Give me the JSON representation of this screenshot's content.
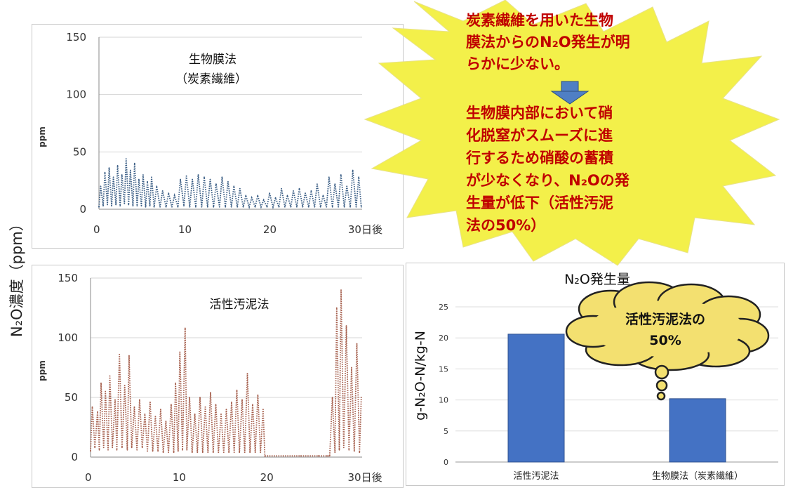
{
  "ylabel_main": "N₂O濃度（ppm）",
  "callout": {
    "lines_top": [
      "炭素繊維を用いた生物",
      "膜法からのN₂O発生が明",
      "らかに少ない。"
    ],
    "lines_bottom": [
      "生物膜内部において硝",
      "化脱窒がスムーズに進",
      "行するため硝酸の蓄積",
      "が少なくなり、N₂Oの発",
      "生量が低下（活性汚泥",
      "法の50%）"
    ],
    "colors": {
      "burst": "#f3f04a",
      "text": "#c00000",
      "arrow": "#4f7fc4"
    }
  },
  "cloud_label": [
    "活性汚泥法の",
    "50%"
  ],
  "colors": {
    "biofilm_series": "#3c5f86",
    "sludge_series": "#a6604e",
    "bar": "#4472c4"
  },
  "chart_data": [
    {
      "type": "line",
      "title": [
        "生物膜法",
        "（炭素繊維）"
      ],
      "ylabel": "ppm",
      "xlabel_suffix": "日後",
      "ylim": [
        0,
        150
      ],
      "yticks": [
        0,
        50,
        100,
        150
      ],
      "xlim": [
        0,
        31
      ],
      "xticks": [
        0,
        10,
        20,
        30
      ],
      "xtick_labels": [
        "0",
        "10",
        "20",
        "30日後"
      ],
      "series": [
        {
          "values": [
            [
              0.0,
              2
            ],
            [
              0.2,
              20
            ],
            [
              0.5,
              3
            ],
            [
              0.7,
              32
            ],
            [
              1.0,
              4
            ],
            [
              1.2,
              36
            ],
            [
              1.5,
              3
            ],
            [
              1.7,
              28
            ],
            [
              2.0,
              4
            ],
            [
              2.2,
              38
            ],
            [
              2.5,
              3
            ],
            [
              2.7,
              30
            ],
            [
              3.0,
              5
            ],
            [
              3.2,
              44
            ],
            [
              3.5,
              4
            ],
            [
              3.7,
              34
            ],
            [
              4.0,
              3
            ],
            [
              4.2,
              40
            ],
            [
              4.5,
              3
            ],
            [
              4.7,
              26
            ],
            [
              5.0,
              3
            ],
            [
              5.2,
              30
            ],
            [
              5.5,
              2
            ],
            [
              5.7,
              24
            ],
            [
              6.0,
              3
            ],
            [
              6.2,
              28
            ],
            [
              6.5,
              2
            ],
            [
              6.8,
              20
            ],
            [
              7.2,
              2
            ],
            [
              7.5,
              16
            ],
            [
              7.9,
              2
            ],
            [
              8.2,
              14
            ],
            [
              8.6,
              2
            ],
            [
              8.9,
              12
            ],
            [
              9.3,
              2
            ],
            [
              9.6,
              26
            ],
            [
              10.0,
              3
            ],
            [
              10.3,
              29
            ],
            [
              10.7,
              2
            ],
            [
              11.0,
              26
            ],
            [
              11.4,
              2
            ],
            [
              11.7,
              30
            ],
            [
              12.1,
              2
            ],
            [
              12.4,
              28
            ],
            [
              12.8,
              2
            ],
            [
              13.1,
              26
            ],
            [
              13.5,
              2
            ],
            [
              13.8,
              22
            ],
            [
              14.2,
              2
            ],
            [
              14.5,
              28
            ],
            [
              14.9,
              2
            ],
            [
              15.2,
              24
            ],
            [
              15.6,
              2
            ],
            [
              15.9,
              20
            ],
            [
              16.3,
              2
            ],
            [
              16.6,
              18
            ],
            [
              17.0,
              2
            ],
            [
              17.3,
              12
            ],
            [
              17.7,
              2
            ],
            [
              18.0,
              10
            ],
            [
              18.4,
              2
            ],
            [
              18.7,
              12
            ],
            [
              19.1,
              2
            ],
            [
              19.4,
              8
            ],
            [
              19.8,
              2
            ],
            [
              20.1,
              14
            ],
            [
              20.5,
              2
            ],
            [
              20.8,
              10
            ],
            [
              21.2,
              2
            ],
            [
              21.5,
              18
            ],
            [
              21.9,
              2
            ],
            [
              22.2,
              12
            ],
            [
              22.6,
              2
            ],
            [
              22.9,
              16
            ],
            [
              23.3,
              2
            ],
            [
              23.6,
              18
            ],
            [
              24.0,
              2
            ],
            [
              24.3,
              14
            ],
            [
              24.7,
              2
            ],
            [
              25.0,
              16
            ],
            [
              25.4,
              2
            ],
            [
              25.7,
              22
            ],
            [
              26.1,
              2
            ],
            [
              26.4,
              12
            ],
            [
              26.8,
              2
            ],
            [
              27.1,
              28
            ],
            [
              27.5,
              2
            ],
            [
              27.8,
              22
            ],
            [
              28.2,
              2
            ],
            [
              28.5,
              30
            ],
            [
              28.9,
              2
            ],
            [
              29.2,
              20
            ],
            [
              29.6,
              2
            ],
            [
              29.9,
              34
            ],
            [
              30.3,
              2
            ],
            [
              30.6,
              28
            ],
            [
              30.9,
              2
            ]
          ]
        }
      ]
    },
    {
      "type": "line",
      "title": [
        "活性汚泥法"
      ],
      "ylabel": "ppm",
      "xlabel_suffix": "日後",
      "ylim": [
        0,
        150
      ],
      "yticks": [
        0,
        50,
        100,
        150
      ],
      "xlim": [
        0,
        31
      ],
      "xticks": [
        0,
        10,
        20,
        30
      ],
      "xtick_labels": [
        "0",
        "10",
        "20",
        "30日後"
      ],
      "series": [
        {
          "values": [
            [
              0.0,
              5
            ],
            [
              0.2,
              42
            ],
            [
              0.5,
              8
            ],
            [
              0.8,
              38
            ],
            [
              1.0,
              6
            ],
            [
              1.2,
              62
            ],
            [
              1.5,
              8
            ],
            [
              1.7,
              55
            ],
            [
              2.0,
              6
            ],
            [
              2.2,
              68
            ],
            [
              2.5,
              8
            ],
            [
              2.8,
              48
            ],
            [
              3.0,
              6
            ],
            [
              3.3,
              86
            ],
            [
              3.6,
              8
            ],
            [
              3.9,
              60
            ],
            [
              4.2,
              6
            ],
            [
              4.4,
              85
            ],
            [
              4.7,
              8
            ],
            [
              5.0,
              42
            ],
            [
              5.3,
              6
            ],
            [
              5.6,
              48
            ],
            [
              5.9,
              8
            ],
            [
              6.2,
              36
            ],
            [
              6.5,
              5
            ],
            [
              6.8,
              46
            ],
            [
              7.1,
              5
            ],
            [
              7.4,
              34
            ],
            [
              7.7,
              5
            ],
            [
              8.0,
              40
            ],
            [
              8.3,
              4
            ],
            [
              8.6,
              30
            ],
            [
              8.9,
              4
            ],
            [
              9.2,
              44
            ],
            [
              9.5,
              4
            ],
            [
              9.7,
              62
            ],
            [
              10.0,
              5
            ],
            [
              10.2,
              88
            ],
            [
              10.5,
              6
            ],
            [
              10.8,
              108
            ],
            [
              11.0,
              6
            ],
            [
              11.3,
              50
            ],
            [
              11.6,
              4
            ],
            [
              11.9,
              36
            ],
            [
              12.2,
              4
            ],
            [
              12.5,
              50
            ],
            [
              12.8,
              4
            ],
            [
              13.1,
              42
            ],
            [
              13.4,
              4
            ],
            [
              13.7,
              54
            ],
            [
              14.0,
              4
            ],
            [
              14.3,
              44
            ],
            [
              14.6,
              4
            ],
            [
              14.9,
              36
            ],
            [
              15.2,
              4
            ],
            [
              15.5,
              40
            ],
            [
              15.8,
              4
            ],
            [
              16.1,
              46
            ],
            [
              16.4,
              4
            ],
            [
              16.7,
              56
            ],
            [
              17.0,
              4
            ],
            [
              17.3,
              48
            ],
            [
              17.6,
              4
            ],
            [
              17.9,
              70
            ],
            [
              18.2,
              4
            ],
            [
              18.5,
              44
            ],
            [
              18.8,
              4
            ],
            [
              19.1,
              52
            ],
            [
              19.4,
              4
            ],
            [
              19.7,
              40
            ],
            [
              19.9,
              1
            ],
            [
              20.2,
              1
            ],
            [
              22.0,
              1
            ],
            [
              24.0,
              1
            ],
            [
              26.0,
              1
            ],
            [
              27.0,
              1
            ],
            [
              27.3,
              1
            ],
            [
              27.6,
              50
            ],
            [
              27.9,
              4
            ],
            [
              28.1,
              125
            ],
            [
              28.4,
              6
            ],
            [
              28.6,
              140
            ],
            [
              28.9,
              8
            ],
            [
              29.2,
              110
            ],
            [
              29.5,
              6
            ],
            [
              29.8,
              75
            ],
            [
              30.1,
              5
            ],
            [
              30.4,
              95
            ],
            [
              30.7,
              4
            ],
            [
              30.9,
              50
            ]
          ]
        }
      ]
    },
    {
      "type": "bar",
      "title": "N₂O発生量",
      "ylabel": "g-N₂O-N/kg-N",
      "categories": [
        "活性汚泥法",
        "生物膜法（炭素繊維）"
      ],
      "values": [
        20.6,
        10.2
      ],
      "ylim": [
        0,
        25
      ],
      "yticks": [
        0,
        5,
        10,
        15,
        20,
        25
      ]
    }
  ]
}
